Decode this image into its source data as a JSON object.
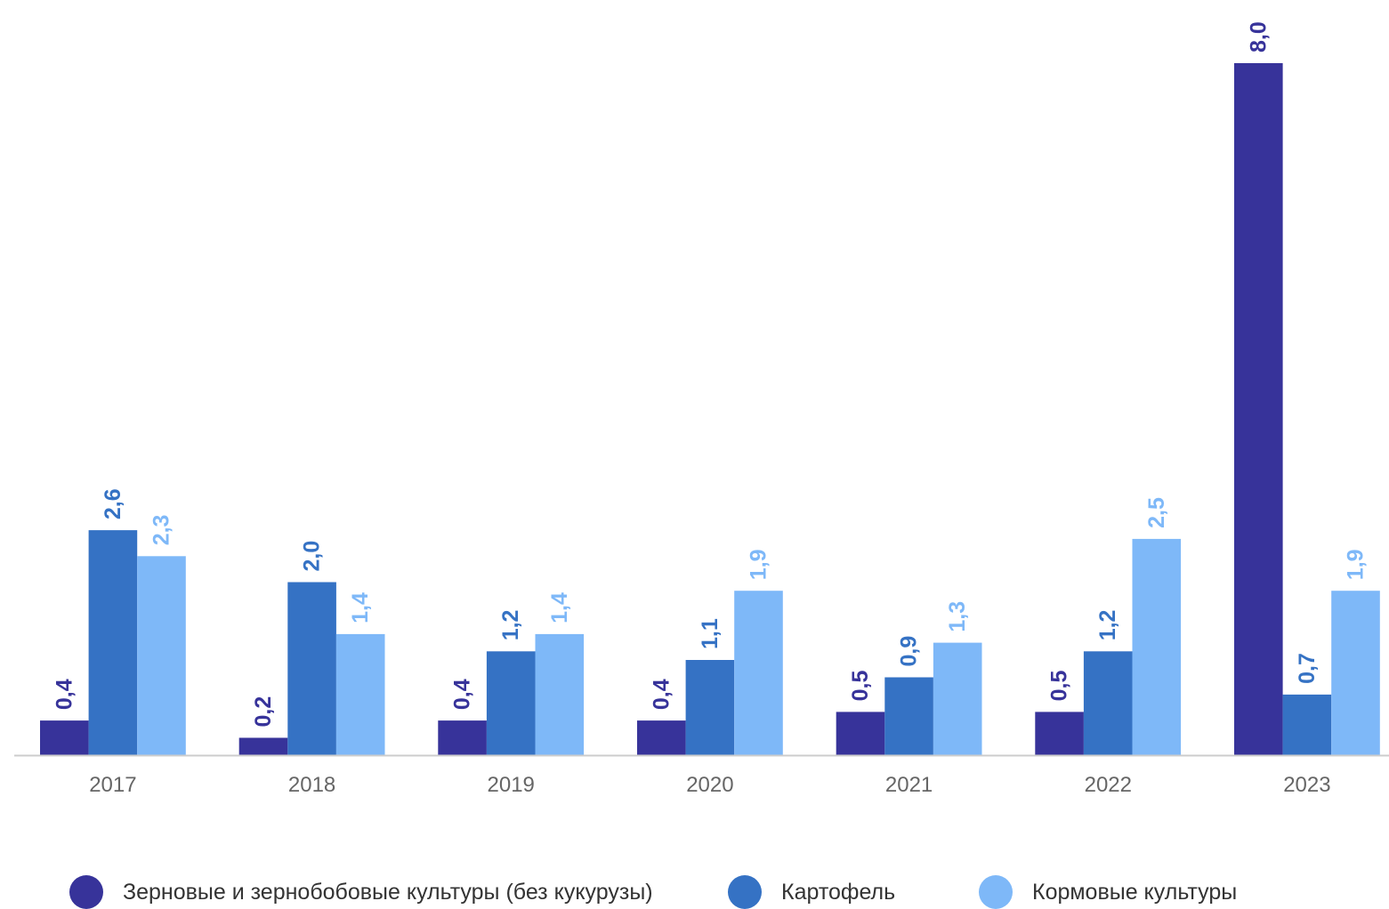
{
  "chart_data": {
    "type": "bar",
    "categories": [
      "2017",
      "2018",
      "2019",
      "2020",
      "2021",
      "2022",
      "2023"
    ],
    "series": [
      {
        "name": "Зерновые и зернобобовые культуры (без кукурузы)",
        "color": "#37339a",
        "values": [
          0.4,
          0.2,
          0.4,
          0.4,
          0.5,
          0.5,
          8.0
        ],
        "labels": [
          "0,4",
          "0,2",
          "0,4",
          "0,4",
          "0,5",
          "0,5",
          "8,0"
        ]
      },
      {
        "name": "Картофель",
        "color": "#3572c4",
        "values": [
          2.6,
          2.0,
          1.2,
          1.1,
          0.9,
          1.2,
          0.7
        ],
        "labels": [
          "2,6",
          "2,0",
          "1,2",
          "1,1",
          "0,9",
          "1,2",
          "0,7"
        ]
      },
      {
        "name": "Кормовые культуры",
        "color": "#7eb8f8",
        "values": [
          2.3,
          1.4,
          1.4,
          1.9,
          1.3,
          2.5,
          1.9
        ],
        "labels": [
          "2,3",
          "1,4",
          "1,4",
          "1,9",
          "1,3",
          "2,5",
          "1,9"
        ]
      }
    ],
    "ylim": [
      0,
      8.0
    ],
    "grid": false,
    "legend_position": "bottom",
    "axis_color": "#cccccc"
  }
}
